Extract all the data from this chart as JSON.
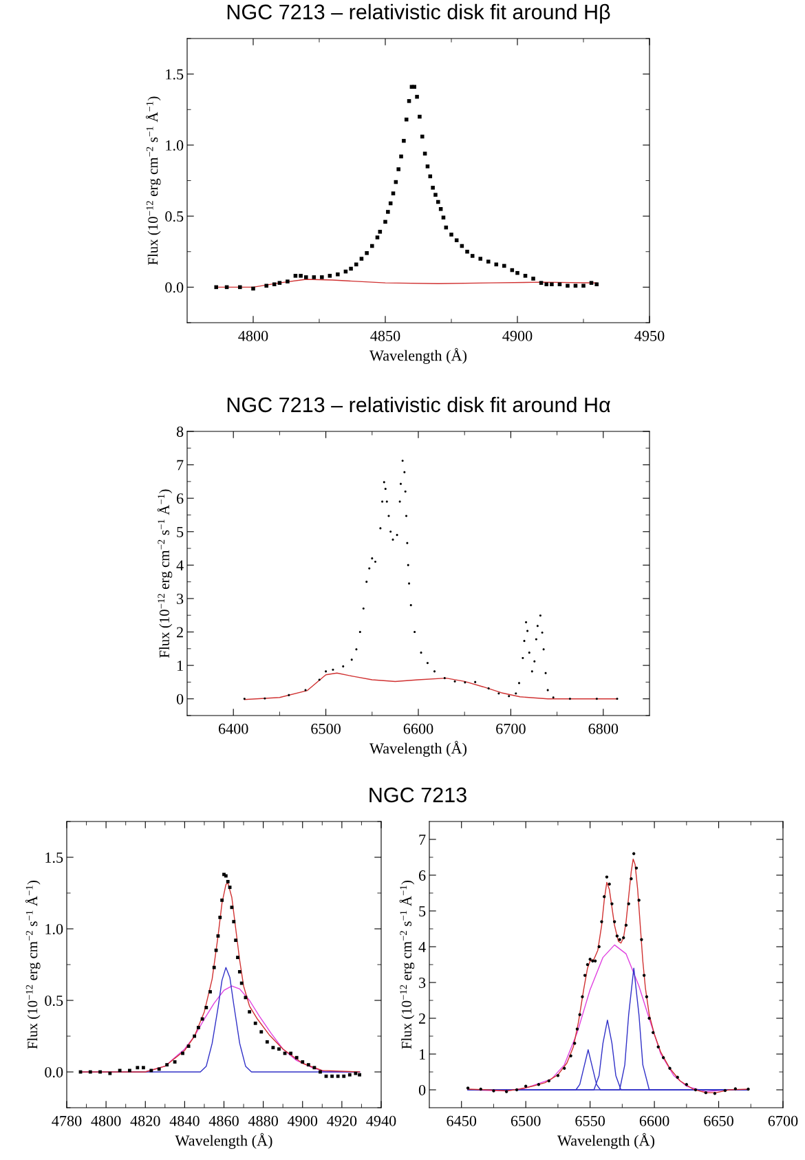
{
  "chart_data": [
    {
      "type": "scatter",
      "title": "NGC 7213 – relativistic disk fit around Hβ",
      "xlabel": "Wavelength (Å)",
      "ylabel": "Flux (10$^{−12}$ erg cm$^{−2}$ s$^{−1}$ Å$^{−1}$)",
      "xlim": [
        4775,
        4950
      ],
      "ylim": [
        -0.25,
        1.75
      ],
      "xticks": [
        4800,
        4850,
        4900,
        4950,
        {
          "value": 4825,
          "label": null
        },
        {
          "value": 4875,
          "label": null
        },
        {
          "value": 4925,
          "label": null
        }
      ],
      "yticks": [
        {
          "value": 0,
          "label": "0.0"
        },
        {
          "value": 0.5,
          "label": "0.5"
        },
        {
          "value": 1,
          "label": "1.0"
        },
        {
          "value": 1.5,
          "label": "1.5"
        },
        {
          "value": -0.25,
          "label": null
        },
        {
          "value": 0.25,
          "label": null
        },
        {
          "value": 0.75,
          "label": null
        },
        {
          "value": 1.25,
          "label": null
        },
        {
          "value": 1.75,
          "label": null
        }
      ],
      "series": [
        {
          "marker": "square",
          "color": "#000000",
          "x": [
            4786,
            4790,
            4795,
            4800,
            4805,
            4808,
            4810,
            4813,
            4816,
            4818,
            4820,
            4823,
            4826,
            4829,
            4832,
            4835,
            4837,
            4839,
            4841,
            4843,
            4845,
            4847,
            4848,
            4850,
            4851,
            4852,
            4853,
            4854,
            4855,
            4856,
            4857,
            4858,
            4859,
            4860,
            4861,
            4862,
            4863,
            4864,
            4865,
            4866,
            4867,
            4868,
            4869,
            4870,
            4871,
            4872,
            4873,
            4875,
            4877,
            4879,
            4881,
            4883,
            4886,
            4889,
            4892,
            4895,
            4898,
            4900,
            4903,
            4906,
            4909,
            4911,
            4913,
            4916,
            4919,
            4922,
            4925,
            4928,
            4930
          ],
          "values": [
            0.0,
            0.0,
            0.0,
            -0.01,
            0.01,
            0.02,
            0.03,
            0.04,
            0.08,
            0.08,
            0.07,
            0.07,
            0.07,
            0.08,
            0.09,
            0.11,
            0.13,
            0.16,
            0.2,
            0.24,
            0.29,
            0.35,
            0.39,
            0.46,
            0.53,
            0.59,
            0.66,
            0.74,
            0.83,
            0.92,
            1.03,
            1.18,
            1.31,
            1.41,
            1.41,
            1.34,
            1.2,
            1.06,
            0.94,
            0.85,
            0.78,
            0.7,
            0.65,
            0.6,
            0.55,
            0.49,
            0.42,
            0.37,
            0.33,
            0.29,
            0.25,
            0.22,
            0.2,
            0.18,
            0.16,
            0.15,
            0.12,
            0.1,
            0.08,
            0.06,
            0.03,
            0.02,
            0.02,
            0.02,
            0.01,
            0.01,
            0.01,
            0.03,
            0.02
          ]
        },
        {
          "type": "line",
          "color": "#d03030",
          "x": [
            4786,
            4800,
            4810,
            4820,
            4830,
            4840,
            4850,
            4870,
            4890,
            4910,
            4930
          ],
          "values": [
            0.0,
            0.0,
            0.03,
            0.055,
            0.05,
            0.04,
            0.03,
            0.025,
            0.03,
            0.035,
            0.03
          ]
        }
      ]
    },
    {
      "type": "scatter",
      "title": "NGC 7213 – relativistic disk fit around Hα",
      "xlabel": "Wavelength (Å)",
      "ylabel": "Flux (10$^{−12}$ erg cm$^{−2}$ s$^{−1}$ Å$^{−1}$)",
      "xlim": [
        6350,
        6850
      ],
      "ylim": [
        -0.5,
        8
      ],
      "xticks": [
        6400,
        6500,
        6600,
        6700,
        6800,
        {
          "value": 6450,
          "label": null
        },
        {
          "value": 6550,
          "label": null
        },
        {
          "value": 6650,
          "label": null
        },
        {
          "value": 6750,
          "label": null
        }
      ],
      "yticks": [
        0,
        1,
        2,
        3,
        4,
        5,
        6,
        7,
        8,
        {
          "value": -0.5,
          "label": null
        },
        {
          "value": 0.5,
          "label": null
        },
        {
          "value": 1.5,
          "label": null
        },
        {
          "value": 2.5,
          "label": null
        },
        {
          "value": 3.5,
          "label": null
        },
        {
          "value": 4.5,
          "label": null
        },
        {
          "value": 5.5,
          "label": null
        },
        {
          "value": 6.5,
          "label": null
        },
        {
          "value": 7.5,
          "label": null
        }
      ],
      "series": [
        {
          "marker": "circle",
          "color": "#000000",
          "x": [
            6412,
            6434,
            6460,
            6478,
            6493,
            6500,
            6507.7,
            6518.7,
            6528,
            6533,
            6537,
            6540.7,
            6544,
            6547,
            6550,
            6553.5,
            6559,
            6561,
            6563,
            6564.5,
            6566,
            6568,
            6570,
            6572.5,
            6577,
            6580,
            6581,
            6583,
            6585,
            6586,
            6587,
            6588,
            6589,
            6590,
            6592,
            6596,
            6603,
            6610,
            6617.5,
            6628.5,
            6639.5,
            6650.5,
            6661.5,
            6676,
            6687,
            6698,
            6705.5,
            6709,
            6713,
            6714.6,
            6716.5,
            6718,
            6720,
            6723,
            6725.6,
            6727.5,
            6729,
            6732,
            6734,
            6735.5,
            6737.7,
            6740,
            6746,
            6764,
            6793,
            6815
          ],
          "values": [
            0,
            0.01,
            0.11,
            0.26,
            0.57,
            0.82,
            0.87,
            0.97,
            1.17,
            1.48,
            2.0,
            2.7,
            3.5,
            3.9,
            4.2,
            4.1,
            5.1,
            5.9,
            6.48,
            6.28,
            5.9,
            5.47,
            5.0,
            4.76,
            4.9,
            5.9,
            6.43,
            7.12,
            6.78,
            6.2,
            5.47,
            4.66,
            4.0,
            3.45,
            2.8,
            2.0,
            1.38,
            1.07,
            0.82,
            0.62,
            0.52,
            0.49,
            0.5,
            0.31,
            0.16,
            0.08,
            0.16,
            0.47,
            1.22,
            1.73,
            2.29,
            2.03,
            1.38,
            0.82,
            1.12,
            1.78,
            2.18,
            2.49,
            1.98,
            1.48,
            0.77,
            0.26,
            0.04,
            0,
            0,
            0
          ]
        },
        {
          "type": "line",
          "color": "#d03030",
          "x": [
            6412,
            6450,
            6480,
            6500,
            6512,
            6530,
            6550,
            6575,
            6600,
            6630,
            6650,
            6670,
            6690,
            6710,
            6740,
            6815
          ],
          "values": [
            -0.02,
            0.04,
            0.25,
            0.72,
            0.77,
            0.67,
            0.57,
            0.52,
            0.57,
            0.62,
            0.52,
            0.36,
            0.18,
            0.06,
            0,
            0
          ]
        }
      ]
    },
    {
      "type": "scatter",
      "title": "NGC 7213",
      "xlabel": "Wavelength (Å)",
      "ylabel": "Flux (10$^{−12}$ erg cm$^{−2}$ s$^{−1}$ Å$^{−1}$)",
      "xlim": [
        4780,
        4940
      ],
      "ylim": [
        -0.25,
        1.75
      ],
      "xticks": [
        4780,
        4800,
        4820,
        4840,
        4860,
        4880,
        4900,
        4920,
        4940,
        {
          "value": 4790,
          "label": null
        },
        {
          "value": 4810,
          "label": null
        },
        {
          "value": 4830,
          "label": null
        },
        {
          "value": 4850,
          "label": null
        },
        {
          "value": 4870,
          "label": null
        },
        {
          "value": 4890,
          "label": null
        },
        {
          "value": 4910,
          "label": null
        },
        {
          "value": 4930,
          "label": null
        }
      ],
      "yticks": [
        {
          "value": 0,
          "label": "0.0"
        },
        {
          "value": 0.5,
          "label": "0.5"
        },
        {
          "value": 1,
          "label": "1.0"
        },
        {
          "value": 1.5,
          "label": "1.5"
        },
        {
          "value": -0.25,
          "label": null
        },
        {
          "value": 0.25,
          "label": null
        },
        {
          "value": 0.75,
          "label": null
        },
        {
          "value": 1.25,
          "label": null
        },
        {
          "value": 1.75,
          "label": null
        }
      ],
      "series": [
        {
          "type": "line",
          "color": "#e040e0",
          "x": [
            4787,
            4820,
            4830,
            4840,
            4845,
            4850,
            4855,
            4860,
            4864,
            4868,
            4873,
            4878,
            4884,
            4890,
            4897,
            4905,
            4912,
            4929
          ],
          "values": [
            0,
            0,
            0.04,
            0.16,
            0.25,
            0.37,
            0.48,
            0.57,
            0.6,
            0.58,
            0.5,
            0.39,
            0.27,
            0.16,
            0.08,
            0.03,
            0,
            0
          ]
        },
        {
          "type": "line",
          "color": "#3030c8",
          "x": [
            4787,
            4848,
            4851,
            4854,
            4857,
            4859,
            4861,
            4863,
            4865,
            4868,
            4871,
            4874,
            4929
          ],
          "values": [
            0,
            0,
            0.04,
            0.2,
            0.45,
            0.64,
            0.73,
            0.66,
            0.47,
            0.2,
            0.04,
            0,
            0
          ]
        },
        {
          "type": "line",
          "color": "#d03030",
          "x": [
            4787,
            4820,
            4830,
            4840,
            4845,
            4850,
            4854,
            4857,
            4859,
            4861,
            4862,
            4864,
            4866,
            4868,
            4870,
            4873,
            4877,
            4883,
            4890,
            4900,
            4910,
            4929
          ],
          "values": [
            0,
            0,
            0.04,
            0.15,
            0.25,
            0.42,
            0.65,
            0.95,
            1.18,
            1.31,
            1.32,
            1.22,
            1.0,
            0.78,
            0.6,
            0.46,
            0.37,
            0.26,
            0.16,
            0.06,
            0.01,
            0
          ]
        },
        {
          "marker": "square",
          "color": "#000000",
          "x": [
            4787,
            4792,
            4797,
            4802,
            4807,
            4812,
            4816,
            4819,
            4823,
            4827,
            4831,
            4835,
            4839,
            4842,
            4845,
            4847,
            4849,
            4851,
            4853,
            4855,
            4856,
            4857,
            4858,
            4859,
            4860,
            4861,
            4862,
            4863,
            4864,
            4865,
            4866,
            4867,
            4868,
            4869,
            4871,
            4873,
            4876,
            4879,
            4882,
            4885,
            4888,
            4891,
            4894,
            4897,
            4900,
            4903,
            4906,
            4909,
            4912,
            4915,
            4918,
            4921,
            4924,
            4927,
            4929
          ],
          "values": [
            0,
            0,
            0,
            -0.01,
            0.01,
            0.01,
            0.03,
            0.03,
            0.01,
            0.02,
            0.05,
            0.07,
            0.13,
            0.18,
            0.25,
            0.31,
            0.37,
            0.45,
            0.56,
            0.73,
            0.85,
            0.95,
            1.08,
            1.2,
            1.38,
            1.37,
            1.33,
            1.29,
            1.15,
            1.05,
            0.92,
            0.8,
            0.7,
            0.62,
            0.52,
            0.42,
            0.34,
            0.28,
            0.21,
            0.17,
            0.16,
            0.13,
            0.13,
            0.1,
            0.07,
            0.05,
            0.03,
            0,
            -0.03,
            -0.03,
            -0.03,
            -0.03,
            -0.02,
            -0.01,
            -0.02
          ]
        }
      ]
    },
    {
      "type": "scatter",
      "xlabel": "Wavelength (Å)",
      "ylabel": "Flux (10$^{−12}$ erg cm$^{−2}$ s$^{−1}$ Å$^{−1}$)",
      "xlim": [
        6425,
        6700
      ],
      "ylim": [
        -0.5,
        7.5
      ],
      "xticks": [
        6450,
        6500,
        6550,
        6600,
        6650,
        6700,
        {
          "value": 6475,
          "label": null
        },
        {
          "value": 6525,
          "label": null
        },
        {
          "value": 6575,
          "label": null
        },
        {
          "value": 6625,
          "label": null
        },
        {
          "value": 6675,
          "label": null
        }
      ],
      "yticks": [
        0,
        1,
        2,
        3,
        4,
        5,
        6,
        7,
        {
          "value": 0.5,
          "label": null
        },
        {
          "value": 1.5,
          "label": null
        },
        {
          "value": 2.5,
          "label": null
        },
        {
          "value": 3.5,
          "label": null
        },
        {
          "value": 4.5,
          "label": null
        },
        {
          "value": 5.5,
          "label": null
        },
        {
          "value": 6.5,
          "label": null
        }
      ],
      "series": [
        {
          "type": "line",
          "color": "#e040e0",
          "x": [
            6455,
            6485,
            6500,
            6520,
            6530,
            6540,
            6550,
            6560,
            6569,
            6578,
            6588,
            6595,
            6605,
            6615,
            6625,
            6640,
            6655,
            6673
          ],
          "values": [
            0,
            -0.03,
            0.05,
            0.3,
            0.7,
            1.6,
            2.8,
            3.7,
            4.05,
            3.8,
            2.9,
            2.1,
            1.0,
            0.4,
            0.1,
            -0.05,
            0,
            0
          ]
        },
        {
          "type": "line",
          "color": "#3030c8",
          "x": [
            6455,
            6539,
            6542,
            6545,
            6548.5,
            6552,
            6555,
            6558,
            6673
          ],
          "values": [
            0,
            0,
            0.15,
            0.6,
            1.12,
            0.6,
            0.15,
            0,
            0
          ]
        },
        {
          "type": "line",
          "color": "#3030c8",
          "x": [
            6455,
            6553,
            6557,
            6560,
            6563.5,
            6567,
            6570,
            6574,
            6673
          ],
          "values": [
            0,
            0,
            0.4,
            1.3,
            1.95,
            1.3,
            0.4,
            0,
            0
          ]
        },
        {
          "type": "line",
          "color": "#3030c8",
          "x": [
            6455,
            6573,
            6577,
            6580,
            6584,
            6588,
            6591,
            6596,
            6673
          ],
          "values": [
            0,
            0,
            0.7,
            2.1,
            3.4,
            2.1,
            0.7,
            0,
            0
          ]
        },
        {
          "type": "line",
          "color": "#d03030",
          "x": [
            6455,
            6470,
            6485,
            6495,
            6505,
            6515,
            6525,
            6532,
            6537,
            6541,
            6545,
            6548,
            6550,
            6553,
            6556,
            6559,
            6561,
            6563,
            6565,
            6567,
            6569,
            6572,
            6574,
            6576,
            6578,
            6580,
            6582,
            6583.5,
            6585,
            6587,
            6589,
            6591,
            6593,
            6596,
            6600,
            6605,
            6612,
            6620,
            6630,
            6640,
            6648,
            6658,
            6673
          ],
          "values": [
            0.02,
            0,
            -0.03,
            0.02,
            0.1,
            0.2,
            0.42,
            0.75,
            1.2,
            1.9,
            2.8,
            3.4,
            3.6,
            3.65,
            3.9,
            4.6,
            5.3,
            5.8,
            5.6,
            5.1,
            4.6,
            4.15,
            4.1,
            4.25,
            4.7,
            5.4,
            6.1,
            6.45,
            6.3,
            5.6,
            4.6,
            3.6,
            2.85,
            2.1,
            1.55,
            1.05,
            0.6,
            0.25,
            0.02,
            -0.08,
            -0.08,
            0,
            0.02
          ]
        },
        {
          "marker": "circle",
          "color": "#000000",
          "x": [
            6455,
            6465,
            6475,
            6485,
            6493,
            6500,
            6510,
            6518,
            6525,
            6530,
            6535,
            6538,
            6540,
            6542,
            6544,
            6546,
            6548,
            6550,
            6552,
            6554,
            6557,
            6559,
            6561,
            6563,
            6565,
            6567,
            6569,
            6571,
            6573,
            6576,
            6578,
            6580,
            6582,
            6584,
            6586,
            6588,
            6590,
            6592,
            6594,
            6596,
            6599,
            6603,
            6607,
            6612,
            6618,
            6625,
            6632,
            6640,
            6647,
            6655,
            6663,
            6673
          ],
          "values": [
            0.05,
            0.02,
            -0.03,
            -0.05,
            0,
            0.1,
            0.15,
            0.25,
            0.4,
            0.6,
            0.95,
            1.3,
            1.7,
            2.1,
            2.6,
            3.2,
            3.5,
            3.65,
            3.6,
            3.6,
            4.0,
            4.7,
            5.4,
            5.95,
            5.75,
            5.2,
            4.7,
            4.3,
            4.2,
            4.25,
            4.6,
            5.2,
            5.9,
            6.6,
            6.2,
            5.3,
            4.2,
            3.2,
            2.6,
            2.0,
            1.6,
            1.2,
            0.9,
            0.6,
            0.35,
            0.15,
            0,
            -0.08,
            -0.1,
            -0.02,
            0.03,
            0.02
          ]
        }
      ]
    }
  ]
}
